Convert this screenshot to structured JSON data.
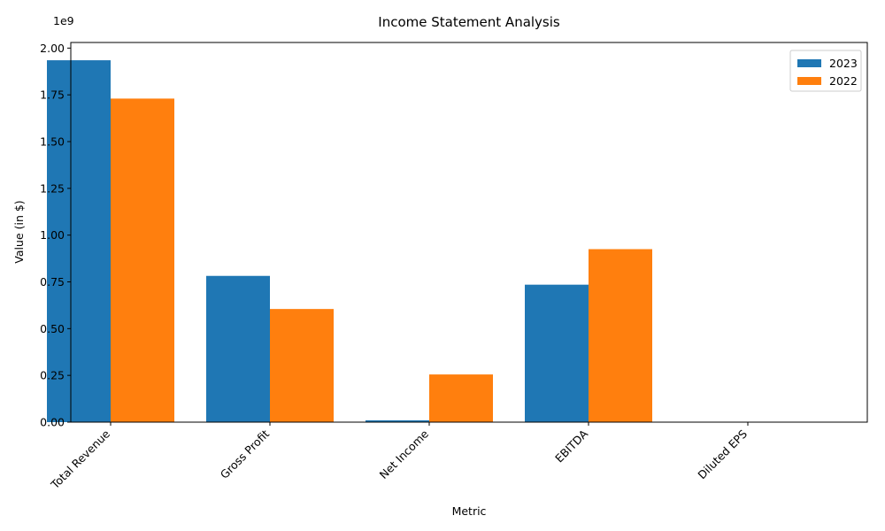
{
  "chart_data": {
    "type": "bar",
    "title": "Income Statement Analysis",
    "xlabel": "Metric",
    "ylabel": "Value (in $)",
    "y_offset_label": "1e9",
    "categories": [
      "Total Revenue",
      "Gross Profit",
      "Net Income",
      "EBITDA",
      "Diluted EPS"
    ],
    "series": [
      {
        "name": "2023",
        "color": "#1f77b4",
        "values": [
          1935000000.0,
          782000000.0,
          10000000.0,
          735000000.0,
          0
        ]
      },
      {
        "name": "2022",
        "color": "#ff7f0e",
        "values": [
          1730000000.0,
          605000000.0,
          255000000.0,
          925000000.0,
          0
        ]
      }
    ],
    "ylim": [
      0,
      2030000000.0
    ],
    "yticks": [
      0,
      250000000.0,
      500000000.0,
      750000000.0,
      1000000000.0,
      1250000000.0,
      1500000000.0,
      1750000000.0,
      2000000000.0
    ],
    "ytick_labels": [
      "0.00",
      "0.25",
      "0.50",
      "0.75",
      "1.00",
      "1.25",
      "1.50",
      "1.75",
      "2.00"
    ],
    "grid": false,
    "legend_position": "top-right"
  }
}
